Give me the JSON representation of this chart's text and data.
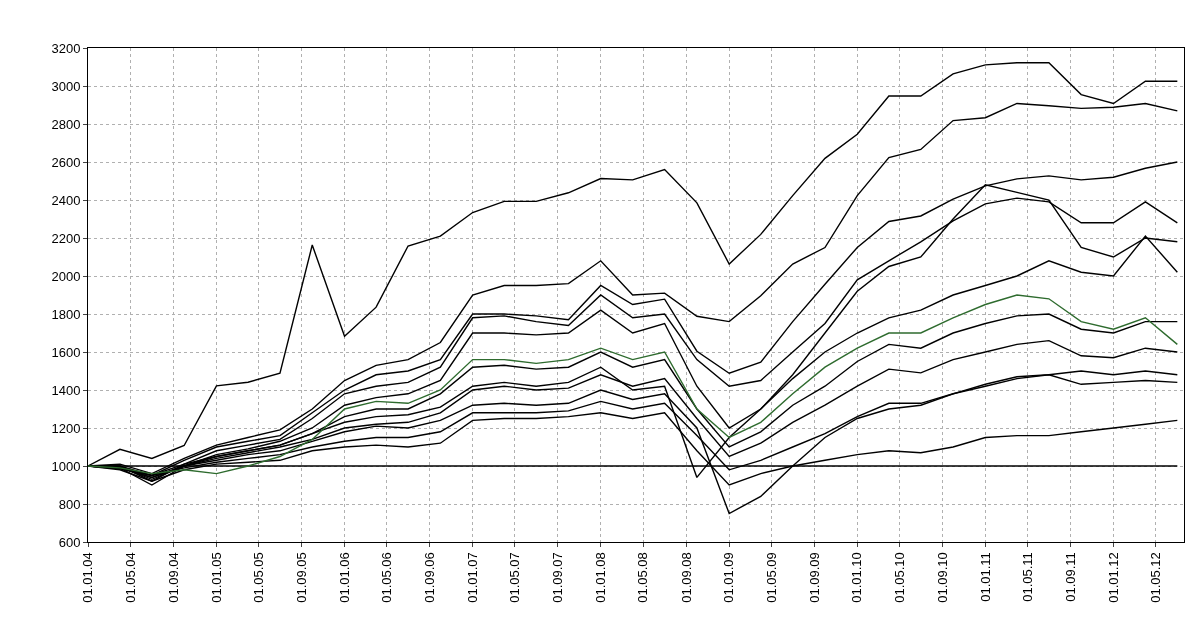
{
  "chart_data": {
    "type": "line",
    "x": [
      "2004-01-01",
      "2004-04-01",
      "2004-07-01",
      "2004-10-01",
      "2005-01-01",
      "2005-04-01",
      "2005-07-01",
      "2005-10-01",
      "2006-01-01",
      "2006-04-01",
      "2006-07-01",
      "2006-10-01",
      "2007-01-01",
      "2007-04-01",
      "2007-07-01",
      "2007-10-01",
      "2008-01-01",
      "2008-04-01",
      "2008-07-01",
      "2008-10-01",
      "2009-01-01",
      "2009-04-01",
      "2009-07-01",
      "2009-10-01",
      "2010-01-01",
      "2010-04-01",
      "2010-07-01",
      "2010-10-01",
      "2011-01-01",
      "2011-04-01",
      "2011-07-01",
      "2011-10-01",
      "2012-01-01",
      "2012-04-01",
      "2012-07-01"
    ],
    "series": [
      {
        "color": "#000000",
        "values": [
          1000,
          1088,
          1040,
          1108,
          1422,
          1441,
          1489,
          2163,
          1683,
          1836,
          2158,
          2210,
          2334,
          2393,
          2393,
          2438,
          2513,
          2506,
          2560,
          2385,
          2063,
          2219,
          2423,
          2619,
          2746,
          2947,
          2947,
          3064,
          3111,
          3122,
          3122,
          2955,
          2908,
          3025,
          3025
        ]
      },
      {
        "color": "#000000",
        "values": [
          1000,
          1010,
          960,
          1040,
          1110,
          1150,
          1190,
          1300,
          1450,
          1530,
          1560,
          1650,
          1900,
          1950,
          1950,
          1960,
          2080,
          1900,
          1910,
          1788,
          1760,
          1896,
          2063,
          2150,
          2423,
          2623,
          2666,
          2818,
          2833,
          2908,
          2896,
          2882,
          2888,
          2908,
          2869
        ]
      },
      {
        "color": "#000000",
        "values": [
          1000,
          1000,
          950,
          1030,
          1100,
          1130,
          1160,
          1280,
          1400,
          1480,
          1500,
          1560,
          1800,
          1800,
          1790,
          1770,
          1950,
          1850,
          1878,
          1604,
          1488,
          1546,
          1760,
          1957,
          2150,
          2287,
          2316,
          2405,
          2474,
          2511,
          2527,
          2506,
          2520,
          2567,
          2600
        ]
      },
      {
        "color": "#000000",
        "values": [
          1000,
          1000,
          920,
          1010,
          1080,
          1110,
          1140,
          1250,
          1380,
          1420,
          1440,
          1520,
          1780,
          1790,
          1760,
          1740,
          1900,
          1780,
          1800,
          1560,
          1420,
          1450,
          1600,
          1750,
          1980,
          2080,
          2180,
          2290,
          2380,
          2410,
          2390,
          2280,
          2280,
          2390,
          2280
        ]
      },
      {
        "color": "#000000",
        "values": [
          1000,
          990,
          900,
          1000,
          1060,
          1090,
          1130,
          1200,
          1320,
          1360,
          1380,
          1450,
          1700,
          1700,
          1690,
          1700,
          1820,
          1700,
          1750,
          1420,
          1200,
          1300,
          1480,
          1700,
          1920,
          2050,
          2100,
          2300,
          2480,
          2440,
          2400,
          2150,
          2100,
          2200,
          2180
        ]
      },
      {
        "color": "#000000",
        "values": [
          1000,
          995,
          930,
          1000,
          1050,
          1080,
          1110,
          1170,
          1260,
          1300,
          1300,
          1380,
          1520,
          1530,
          1510,
          1520,
          1600,
          1520,
          1560,
          1300,
          1100,
          1180,
          1320,
          1420,
          1550,
          1640,
          1620,
          1700,
          1750,
          1790,
          1800,
          1720,
          1700,
          1760,
          1760
        ]
      },
      {
        "color": "#000000",
        "values": [
          1000,
          990,
          940,
          1000,
          1040,
          1070,
          1100,
          1140,
          1200,
          1220,
          1230,
          1280,
          1400,
          1420,
          1400,
          1410,
          1480,
          1420,
          1460,
          1250,
          1050,
          1120,
          1230,
          1320,
          1420,
          1510,
          1490,
          1560,
          1600,
          1640,
          1660,
          1580,
          1570,
          1620,
          1600
        ]
      },
      {
        "color": "#000000",
        "values": [
          1000,
          985,
          950,
          990,
          1020,
          1040,
          1060,
          1100,
          1130,
          1150,
          1150,
          1180,
          1280,
          1280,
          1280,
          1290,
          1340,
          1300,
          1330,
          1160,
          980,
          1030,
          1100,
          1170,
          1260,
          1330,
          1330,
          1380,
          1420,
          1460,
          1480,
          1430,
          1440,
          1450,
          1440
        ]
      },
      {
        "color": "#000000",
        "values": [
          1000,
          990,
          940,
          1000,
          1030,
          1060,
          1080,
          1130,
          1180,
          1210,
          1200,
          1240,
          1320,
          1330,
          1320,
          1330,
          1400,
          1350,
          1380,
          1200,
          750,
          840,
          1000,
          1150,
          1250,
          1300,
          1320,
          1380,
          1430,
          1470,
          1480,
          1500,
          1480,
          1500,
          1480
        ]
      },
      {
        "color": "#000000",
        "values": [
          1000,
          980,
          920,
          980,
          1010,
          1020,
          1030,
          1080,
          1100,
          1110,
          1100,
          1120,
          1240,
          1250,
          1250,
          1260,
          1280,
          1250,
          1280,
          1080,
          900,
          960,
          1000,
          1030,
          1060,
          1080,
          1070,
          1100,
          1150,
          1160,
          1160,
          1180,
          1200,
          1220,
          1240
        ]
      },
      {
        "color": "#000000",
        "values": [
          1000,
          990,
          950,
          1010,
          1050,
          1080,
          1110,
          1170,
          1230,
          1260,
          1270,
          1310,
          1420,
          1440,
          1420,
          1440,
          1520,
          1400,
          1420,
          940,
          1150,
          1300,
          1460,
          1600,
          1700,
          1780,
          1820,
          1900,
          1950,
          2000,
          2080,
          2020,
          2000,
          2210,
          2020
        ]
      },
      {
        "color": "#000000",
        "values": [
          1000,
          1000,
          1000,
          1000,
          1000,
          1000,
          1000,
          1000,
          1000,
          1000,
          1000,
          1000,
          1000,
          1000,
          1000,
          1000,
          1000,
          1000,
          1000,
          1000,
          1000,
          1000,
          1000,
          1000,
          1000,
          1000,
          1000,
          1000,
          1000,
          1000,
          1000,
          1000,
          1000,
          1000,
          1000
        ]
      },
      {
        "color": "#2e6b2e",
        "values": [
          1000,
          990,
          960,
          980,
          960,
          1000,
          1050,
          1140,
          1300,
          1340,
          1330,
          1400,
          1560,
          1560,
          1540,
          1560,
          1620,
          1560,
          1600,
          1300,
          1150,
          1230,
          1380,
          1520,
          1620,
          1700,
          1700,
          1780,
          1850,
          1900,
          1880,
          1760,
          1720,
          1780,
          1640
        ]
      }
    ],
    "xlim": [
      "2004-01-01",
      "2012-07-20"
    ],
    "xticks": [
      {
        "value": "2004-01-01",
        "label": "01.01.04"
      },
      {
        "value": "2004-05-01",
        "label": "01.05.04"
      },
      {
        "value": "2004-09-01",
        "label": "01.09.04"
      },
      {
        "value": "2005-01-01",
        "label": "01.01.05"
      },
      {
        "value": "2005-05-01",
        "label": "01.05.05"
      },
      {
        "value": "2005-09-01",
        "label": "01.09.05"
      },
      {
        "value": "2006-01-01",
        "label": "01.01.06"
      },
      {
        "value": "2006-05-01",
        "label": "01.05.06"
      },
      {
        "value": "2006-09-01",
        "label": "01.09.06"
      },
      {
        "value": "2007-01-01",
        "label": "01.01.07"
      },
      {
        "value": "2007-05-01",
        "label": "01.05.07"
      },
      {
        "value": "2007-09-01",
        "label": "01.09.07"
      },
      {
        "value": "2008-01-01",
        "label": "01.01.08"
      },
      {
        "value": "2008-05-01",
        "label": "01.05.08"
      },
      {
        "value": "2008-09-01",
        "label": "01.09.08"
      },
      {
        "value": "2009-01-01",
        "label": "01.01.09"
      },
      {
        "value": "2009-05-01",
        "label": "01.05.09"
      },
      {
        "value": "2009-09-01",
        "label": "01.09.09"
      },
      {
        "value": "2010-01-01",
        "label": "01.01.10"
      },
      {
        "value": "2010-05-01",
        "label": "01.05.10"
      },
      {
        "value": "2010-09-01",
        "label": "01.09.10"
      },
      {
        "value": "2011-01-01",
        "label": "01.01.11"
      },
      {
        "value": "2011-05-01",
        "label": "01.05.11"
      },
      {
        "value": "2011-09-01",
        "label": "01.09.11"
      },
      {
        "value": "2012-01-01",
        "label": "01.01.12"
      },
      {
        "value": "2012-05-01",
        "label": "01.05.12"
      }
    ],
    "ylim": [
      600,
      3200
    ],
    "yticks": [
      600,
      800,
      1000,
      1200,
      1400,
      1600,
      1800,
      2000,
      2200,
      2400,
      2600,
      2800,
      3000,
      3200
    ],
    "grid": true,
    "marker": "none",
    "line_style": "solid"
  }
}
